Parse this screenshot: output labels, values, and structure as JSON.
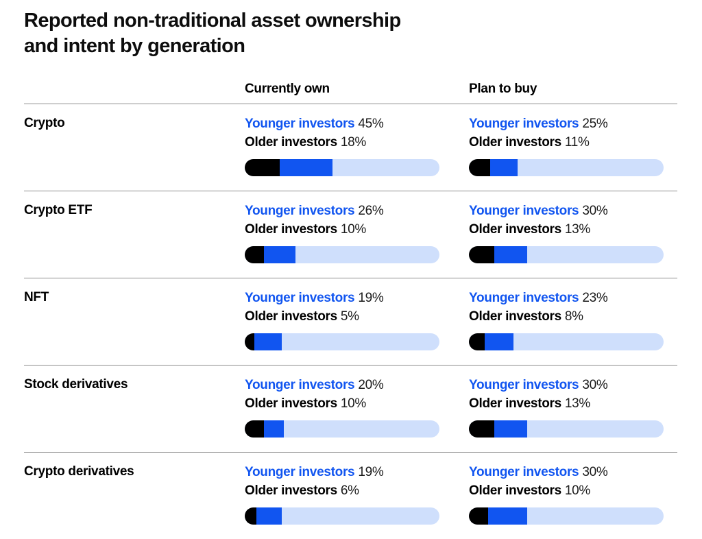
{
  "title_lines": [
    "Reported non-traditional asset ownership",
    "and intent by generation"
  ],
  "columns": [
    {
      "key": "own",
      "label": "Currently own"
    },
    {
      "key": "buy",
      "label": "Plan to buy"
    }
  ],
  "legend": {
    "younger_label": "Younger investors",
    "older_label": "Older investors"
  },
  "colors": {
    "younger_blue": "#1155f0",
    "older_black": "#000000",
    "track_light_blue": "#cfdffc",
    "value_text": "#1a1a1a",
    "divider_gray": "#8c8c8c"
  },
  "unit": "%",
  "rows": [
    {
      "label": "Crypto",
      "own": {
        "younger": 45,
        "older": 18
      },
      "buy": {
        "younger": 25,
        "older": 11
      }
    },
    {
      "label": "Crypto ETF",
      "own": {
        "younger": 26,
        "older": 10
      },
      "buy": {
        "younger": 30,
        "older": 13
      }
    },
    {
      "label": "NFT",
      "own": {
        "younger": 19,
        "older": 5
      },
      "buy": {
        "younger": 23,
        "older": 8
      }
    },
    {
      "label": "Stock derivatives",
      "own": {
        "younger": 20,
        "older": 10
      },
      "buy": {
        "younger": 30,
        "older": 13
      }
    },
    {
      "label": "Crypto derivatives",
      "own": {
        "younger": 19,
        "older": 6
      },
      "buy": {
        "younger": 30,
        "older": 10
      }
    }
  ],
  "chart_data": {
    "type": "bar",
    "title": "Reported non-traditional asset ownership and intent by generation",
    "categories": [
      "Crypto",
      "Crypto ETF",
      "NFT",
      "Stock derivatives",
      "Crypto derivatives"
    ],
    "series": [
      {
        "name": "Currently own — Younger investors",
        "values": [
          45,
          26,
          19,
          20,
          19
        ]
      },
      {
        "name": "Currently own — Older investors",
        "values": [
          18,
          10,
          5,
          10,
          6
        ]
      },
      {
        "name": "Plan to buy — Younger investors",
        "values": [
          25,
          30,
          23,
          30,
          30
        ]
      },
      {
        "name": "Plan to buy — Older investors",
        "values": [
          11,
          13,
          8,
          13,
          10
        ]
      }
    ],
    "unit": "%",
    "xlim": [
      0,
      100
    ],
    "grid": false,
    "legend_position": "inline-per-cell",
    "bar_style": "stacked-progress: black = older %, blue = younger %, light blue = remainder to 100%"
  }
}
